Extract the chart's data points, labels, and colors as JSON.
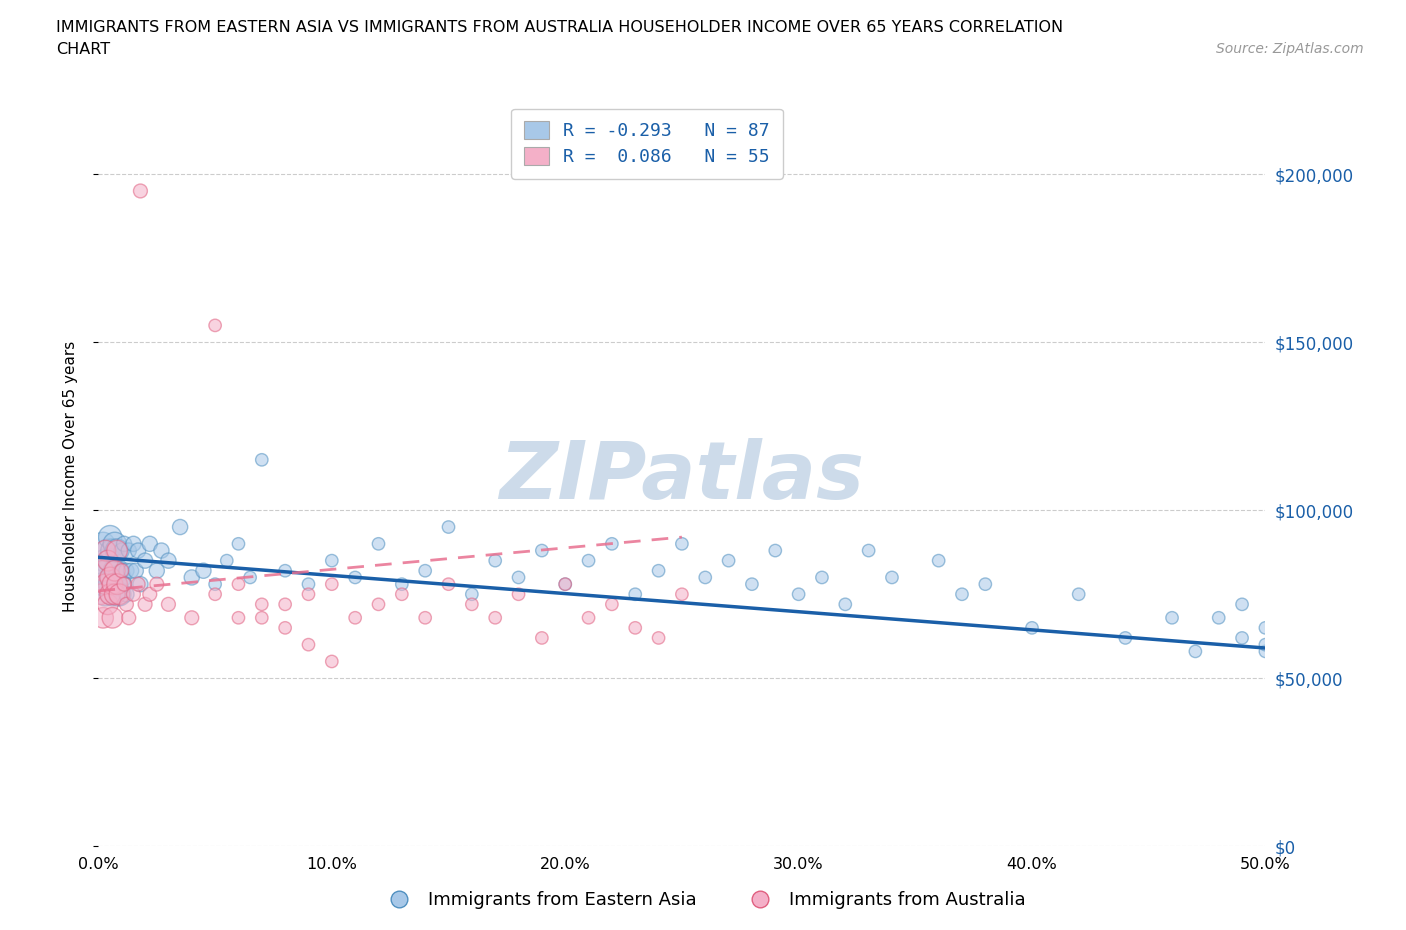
{
  "title_line1": "IMMIGRANTS FROM EASTERN ASIA VS IMMIGRANTS FROM AUSTRALIA HOUSEHOLDER INCOME OVER 65 YEARS CORRELATION",
  "title_line2": "CHART",
  "source_text": "Source: ZipAtlas.com",
  "ylabel": "Householder Income Over 65 years",
  "legend_labels": [
    "Immigrants from Eastern Asia",
    "Immigrants from Australia"
  ],
  "legend_R_blue": "R = -0.293",
  "legend_N_blue": "N = 87",
  "legend_R_pink": "R =  0.086",
  "legend_N_pink": "N = 55",
  "xlim": [
    0.0,
    0.5
  ],
  "ylim": [
    0,
    220000
  ],
  "ytick_values": [
    0,
    50000,
    100000,
    150000,
    200000
  ],
  "ytick_labels": [
    "$0",
    "$50,000",
    "$100,000",
    "$150,000",
    "$200,000"
  ],
  "xtick_values": [
    0.0,
    0.1,
    0.2,
    0.3,
    0.4,
    0.5
  ],
  "xtick_labels": [
    "0.0%",
    "10.0%",
    "20.0%",
    "30.0%",
    "40.0%",
    "50.0%"
  ],
  "color_blue": "#a8c8e8",
  "color_pink": "#f4b0c8",
  "color_blue_edge": "#5090c0",
  "color_pink_edge": "#e06080",
  "trend_blue": "#1a5fa8",
  "trend_pink": "#e87090",
  "watermark_color": "#c8d8e8",
  "background_color": "#ffffff",
  "blue_x": [
    0.001,
    0.002,
    0.002,
    0.003,
    0.003,
    0.004,
    0.004,
    0.005,
    0.005,
    0.005,
    0.006,
    0.006,
    0.006,
    0.007,
    0.007,
    0.007,
    0.008,
    0.008,
    0.008,
    0.009,
    0.009,
    0.01,
    0.01,
    0.011,
    0.011,
    0.012,
    0.012,
    0.013,
    0.014,
    0.015,
    0.016,
    0.017,
    0.018,
    0.02,
    0.022,
    0.025,
    0.027,
    0.03,
    0.035,
    0.04,
    0.045,
    0.05,
    0.055,
    0.06,
    0.065,
    0.07,
    0.08,
    0.09,
    0.1,
    0.11,
    0.12,
    0.13,
    0.14,
    0.15,
    0.16,
    0.17,
    0.18,
    0.19,
    0.2,
    0.21,
    0.22,
    0.23,
    0.24,
    0.25,
    0.26,
    0.27,
    0.28,
    0.29,
    0.3,
    0.31,
    0.32,
    0.33,
    0.34,
    0.36,
    0.37,
    0.38,
    0.4,
    0.42,
    0.44,
    0.46,
    0.47,
    0.48,
    0.49,
    0.49,
    0.5,
    0.5,
    0.5
  ],
  "blue_y": [
    82000,
    78000,
    90000,
    85000,
    75000,
    82000,
    88000,
    78000,
    85000,
    92000,
    75000,
    80000,
    88000,
    82000,
    78000,
    90000,
    75000,
    82000,
    88000,
    80000,
    75000,
    88000,
    82000,
    78000,
    90000,
    82000,
    75000,
    88000,
    82000,
    90000,
    82000,
    88000,
    78000,
    85000,
    90000,
    82000,
    88000,
    85000,
    95000,
    80000,
    82000,
    78000,
    85000,
    90000,
    80000,
    115000,
    82000,
    78000,
    85000,
    80000,
    90000,
    78000,
    82000,
    95000,
    75000,
    85000,
    80000,
    88000,
    78000,
    85000,
    90000,
    75000,
    82000,
    90000,
    80000,
    85000,
    78000,
    88000,
    75000,
    80000,
    72000,
    88000,
    80000,
    85000,
    75000,
    78000,
    65000,
    75000,
    62000,
    68000,
    58000,
    68000,
    62000,
    72000,
    65000,
    58000,
    60000
  ],
  "pink_x": [
    0.001,
    0.002,
    0.002,
    0.003,
    0.003,
    0.004,
    0.004,
    0.005,
    0.005,
    0.006,
    0.006,
    0.007,
    0.007,
    0.008,
    0.008,
    0.009,
    0.01,
    0.011,
    0.012,
    0.013,
    0.015,
    0.017,
    0.018,
    0.02,
    0.022,
    0.025,
    0.03,
    0.04,
    0.05,
    0.06,
    0.07,
    0.08,
    0.09,
    0.1,
    0.11,
    0.12,
    0.13,
    0.14,
    0.15,
    0.16,
    0.17,
    0.18,
    0.19,
    0.2,
    0.21,
    0.22,
    0.23,
    0.24,
    0.25,
    0.05,
    0.06,
    0.07,
    0.08,
    0.09,
    0.1
  ],
  "pink_y": [
    75000,
    82000,
    68000,
    78000,
    88000,
    72000,
    85000,
    80000,
    75000,
    78000,
    68000,
    75000,
    82000,
    78000,
    88000,
    75000,
    82000,
    78000,
    72000,
    68000,
    75000,
    78000,
    195000,
    72000,
    75000,
    78000,
    72000,
    68000,
    75000,
    78000,
    68000,
    72000,
    75000,
    78000,
    68000,
    72000,
    75000,
    68000,
    78000,
    72000,
    68000,
    75000,
    62000,
    78000,
    68000,
    72000,
    65000,
    62000,
    75000,
    155000,
    68000,
    72000,
    65000,
    60000,
    55000
  ],
  "blue_sizes_near": 280,
  "blue_sizes_mid": 120,
  "blue_sizes_far": 80,
  "pink_sizes_near": 220,
  "pink_sizes_mid": 100,
  "pink_sizes_far": 80
}
